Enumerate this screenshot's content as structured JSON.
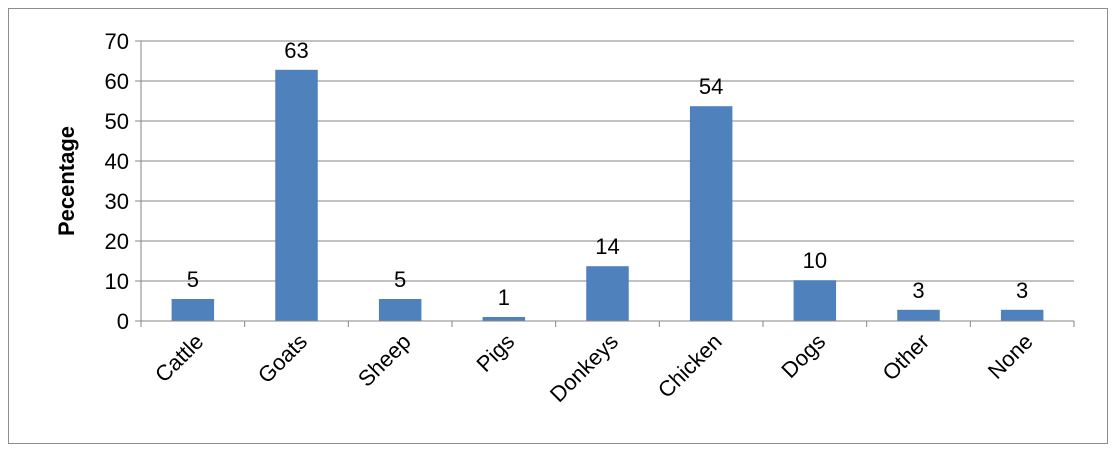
{
  "chart_data": {
    "type": "bar",
    "title": "",
    "xlabel": "",
    "ylabel": "Pecentage",
    "categories": [
      "Cattle",
      "Goats",
      "Sheep",
      "Pigs",
      "Donkeys",
      "Chicken",
      "Dogs",
      "Other",
      "None"
    ],
    "values": [
      5.5,
      62.8,
      5.5,
      1,
      13.7,
      53.7,
      10.2,
      2.8,
      2.8
    ],
    "data_labels": [
      "5",
      "63",
      "5",
      "1",
      "14",
      "54",
      "10",
      "3",
      "3"
    ],
    "ylim": [
      0,
      70
    ],
    "yticks": [
      "0",
      "10",
      "20",
      "30",
      "40",
      "50",
      "60",
      "70"
    ],
    "grid": true,
    "legend": "none",
    "bar_color": "#4f81bd",
    "grid_color": "#868686"
  }
}
